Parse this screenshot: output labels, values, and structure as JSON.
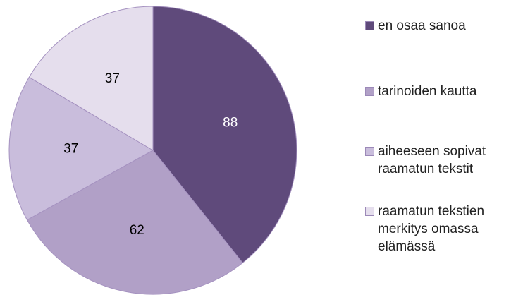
{
  "chart_data": {
    "type": "pie",
    "categories": [
      "en osaa sanoa",
      "tarinoiden kautta",
      "aiheeseen sopivat raamatun tekstit",
      "raamatun tekstien merkitys omassa elämässä"
    ],
    "values": [
      88,
      62,
      37,
      37
    ],
    "colors": [
      "#5f4a7b",
      "#b1a0c7",
      "#c9bddc",
      "#e5deed"
    ],
    "legend": "right"
  }
}
